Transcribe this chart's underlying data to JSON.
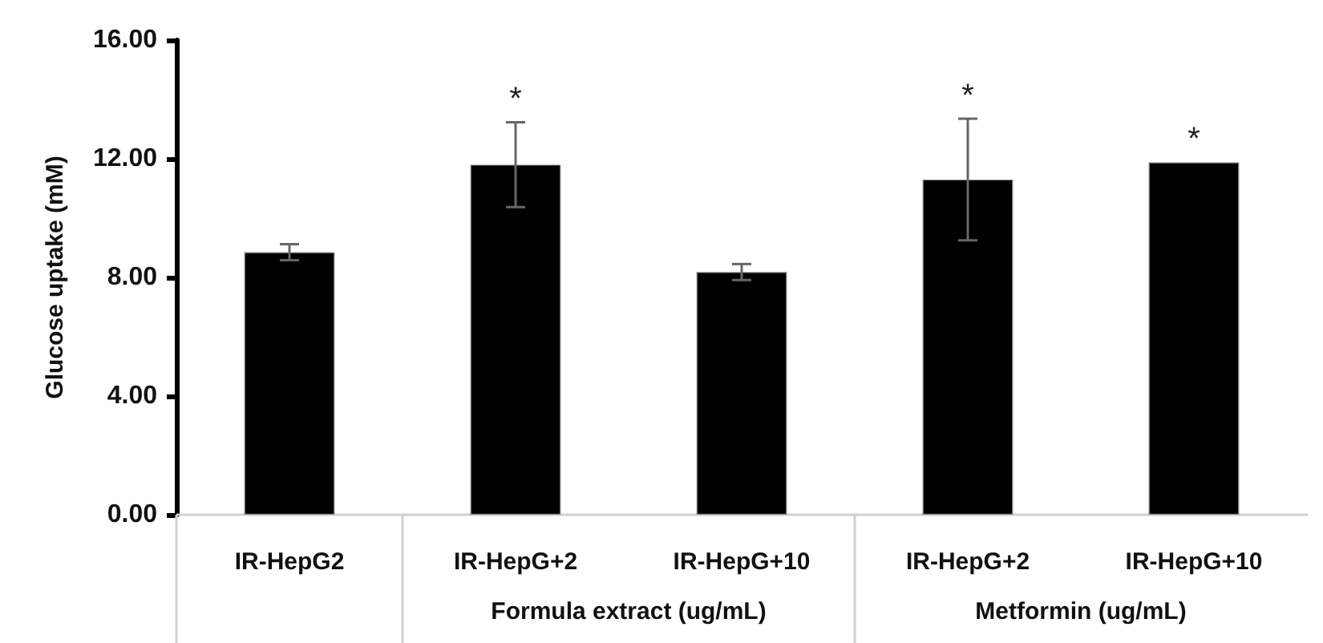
{
  "chart_data": {
    "type": "bar",
    "ylabel": "Glucose uptake (mM)",
    "categories": [
      "IR-HepG2",
      "IR-HepG+2",
      "IR-HepG+10",
      "IR-HepG+2",
      "IR-HepG+10"
    ],
    "values": [
      8.85,
      11.8,
      8.18,
      11.3,
      11.88
    ],
    "errors": [
      0.27,
      1.43,
      0.27,
      2.05,
      null
    ],
    "value_labels": [
      null,
      "*",
      null,
      "*",
      "*"
    ],
    "color": "#000000",
    "ylim": [
      0,
      16
    ],
    "yticks": [
      {
        "value": 0,
        "label": "0.00"
      },
      {
        "value": 4,
        "label": "4.00"
      },
      {
        "value": 8,
        "label": "8.00"
      },
      {
        "value": 12,
        "label": "12.00"
      },
      {
        "value": 16,
        "label": "16.00"
      }
    ],
    "annotations": [
      "Formula extract (ug/mL)",
      "Metformin (ug/mL)"
    ],
    "grid": false
  }
}
